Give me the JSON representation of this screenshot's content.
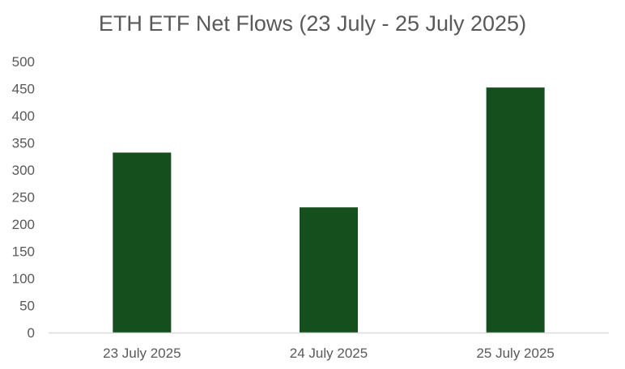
{
  "chart_data": {
    "type": "bar",
    "title": "ETH ETF Net Flows (23 July - 25 July 2025)",
    "categories": [
      "23 July 2025",
      "24 July 2025",
      "25 July 2025"
    ],
    "values": [
      332,
      231,
      452
    ],
    "xlabel": "",
    "ylabel": "",
    "ylim": [
      0,
      500
    ],
    "yticks": [
      "0",
      "50",
      "100",
      "150",
      "200",
      "250",
      "300",
      "350",
      "400",
      "450",
      "500"
    ],
    "grid": false,
    "legend": "none",
    "bar_color": "#154f1e",
    "axis_color": "#d9d9d9",
    "text_color": "#595959"
  }
}
